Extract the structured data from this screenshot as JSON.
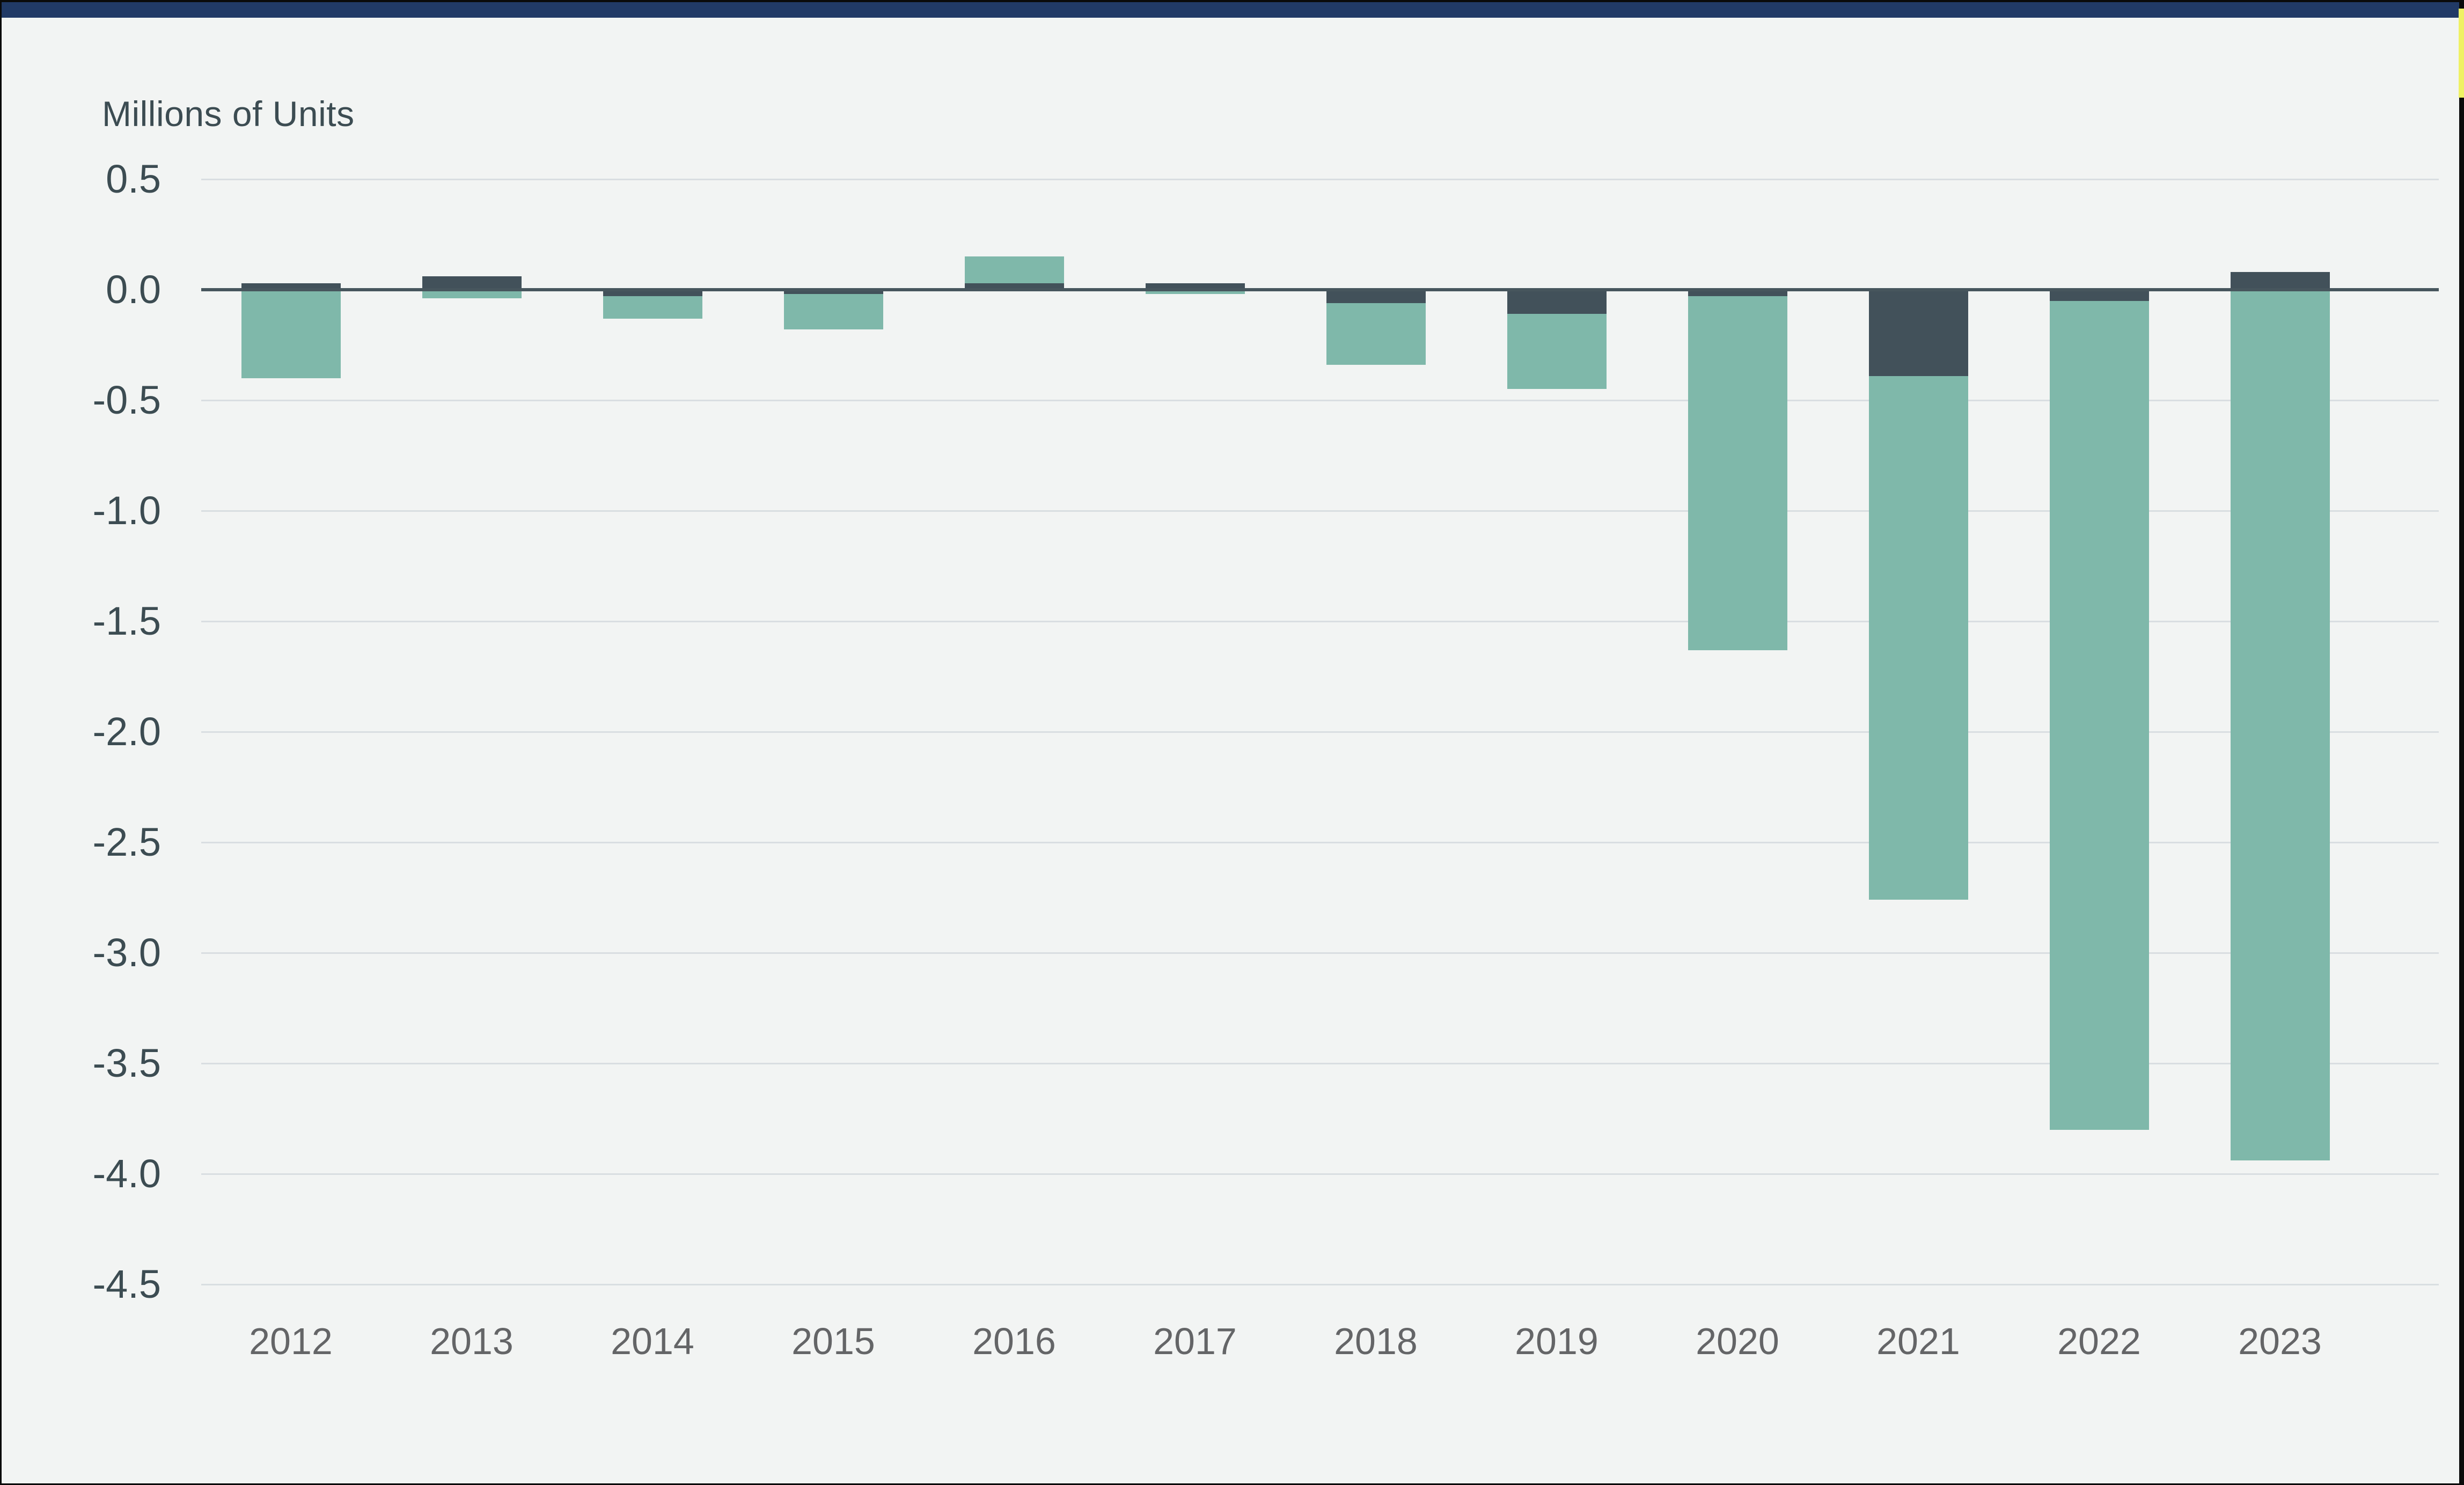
{
  "page": {
    "background_color": "#f2f4f3",
    "frame_color": "#0a0a0a",
    "top_bar_color": "#213a66",
    "edge_highlight_color": "#eff164"
  },
  "chart": {
    "title": "Millions of Units"
  },
  "chart_data": {
    "type": "bar",
    "stacked": true,
    "title": "Millions of Units",
    "categories": [
      "2012",
      "2013",
      "2014",
      "2015",
      "2016",
      "2017",
      "2018",
      "2019",
      "2020",
      "2021",
      "2022",
      "2023"
    ],
    "series": [
      {
        "name": "dark-slate-segment",
        "color": "#42515a",
        "values": [
          0.03,
          0.06,
          -0.03,
          -0.02,
          0.03,
          0.03,
          -0.06,
          -0.11,
          -0.03,
          -0.39,
          -0.05,
          0.08
        ]
      },
      {
        "name": "teal-segment",
        "color": "#7fb8aa",
        "values": [
          -0.4,
          -0.04,
          -0.1,
          -0.16,
          0.12,
          -0.02,
          -0.28,
          -0.34,
          -1.6,
          -2.37,
          -3.75,
          -3.94
        ]
      }
    ],
    "xlabel": "",
    "ylabel": "Millions of Units",
    "ylim": [
      -4.5,
      0.5
    ],
    "y_tick_labels": [
      "0.5",
      "0.0",
      "-0.5",
      "-1.0",
      "-1.5",
      "-2.0",
      "-2.5",
      "-3.0",
      "-3.5",
      "-4.0",
      "-4.5"
    ],
    "y_tick_values": [
      0.5,
      0.0,
      -0.5,
      -1.0,
      -1.5,
      -2.0,
      -2.5,
      -3.0,
      -3.5,
      -4.0,
      -4.5
    ],
    "grid": true,
    "legend": false,
    "gridline_color": "#d9dee1",
    "zero_line_color": "#47565d",
    "y_label_color": "#3c4c52",
    "x_label_color": "#646567"
  }
}
